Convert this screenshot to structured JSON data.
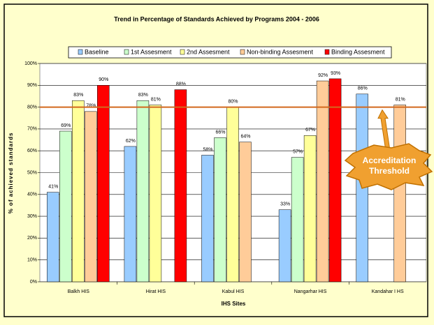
{
  "chart_data": {
    "type": "bar",
    "title": "Trend in Percentage of Standards Achieved by Programs 2004 - 2006",
    "x_label": "IHS Sites",
    "y_label": "% of achieved standards",
    "categories": [
      "Balkh HIS",
      "Hirat HIS",
      "Kabul HIS",
      "Nangarhar HIS",
      "Kandahar I HS"
    ],
    "series": [
      {
        "name": "Baseline",
        "color": "#99ccff",
        "values": [
          41,
          62,
          58,
          33,
          86
        ],
        "value_labels": [
          "41%",
          "62%",
          "58%",
          "33%",
          "86%"
        ]
      },
      {
        "name": "1st Assesment",
        "color": "#ccffcc",
        "values": [
          69,
          83,
          66,
          57,
          null
        ],
        "value_labels": [
          "69%",
          "83%",
          "66%",
          "57%",
          null
        ]
      },
      {
        "name": "2nd Assesment",
        "color": "#ffff99",
        "values": [
          83,
          81,
          80,
          67,
          null
        ],
        "value_labels": [
          "83%",
          "81%",
          "80%",
          "67%",
          null
        ]
      },
      {
        "name": "Non-binding Assesment",
        "color": "#ffcc99",
        "values": [
          78,
          null,
          64,
          92,
          81
        ],
        "value_labels": [
          "78%",
          null,
          "64%",
          "92%",
          "81%"
        ]
      },
      {
        "name": "Binding Assesment",
        "color": "#ff0000",
        "values": [
          90,
          88,
          null,
          93,
          null
        ],
        "value_labels": [
          "90%",
          "88%",
          null,
          "93%",
          null
        ]
      }
    ],
    "ylim": [
      0,
      100
    ],
    "yticks": [
      {
        "value": 0,
        "label": "0%"
      },
      {
        "value": 10,
        "label": "10%"
      },
      {
        "value": 20,
        "label": "20%"
      },
      {
        "value": 30,
        "label": "30%"
      },
      {
        "value": 40,
        "label": "40%"
      },
      {
        "value": 50,
        "label": "50%"
      },
      {
        "value": 60,
        "label": "60%"
      },
      {
        "value": 70,
        "label": "70%"
      },
      {
        "value": 80,
        "label": "80%"
      },
      {
        "value": 90,
        "label": "90%"
      },
      {
        "value": 100,
        "label": "100%"
      }
    ],
    "grid": true,
    "legend": "top",
    "threshold": {
      "value": 80,
      "color": "#d2691e",
      "label_lines": [
        "Accreditation",
        "Threshold"
      ]
    }
  }
}
